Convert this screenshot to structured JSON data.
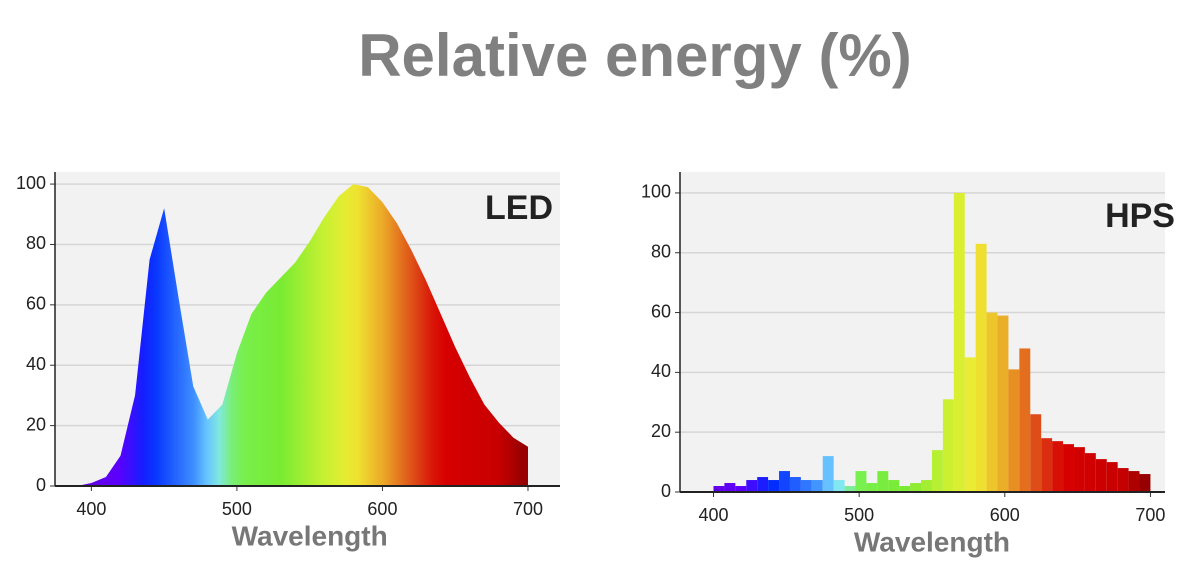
{
  "title": "Relative energy (%)",
  "chart_data": [
    {
      "type": "area",
      "label": "LED",
      "xlabel": "Wavelength",
      "x": [
        390,
        400,
        410,
        420,
        430,
        440,
        450,
        460,
        470,
        480,
        490,
        500,
        510,
        520,
        530,
        540,
        550,
        560,
        570,
        580,
        590,
        600,
        610,
        620,
        630,
        640,
        650,
        660,
        670,
        680,
        690,
        700
      ],
      "values": [
        0,
        1,
        3,
        10,
        30,
        75,
        92,
        62,
        33,
        22,
        27,
        44,
        57,
        64,
        69,
        74,
        81,
        89,
        96,
        100,
        99,
        94,
        87,
        78,
        68,
        57,
        46,
        36,
        27,
        21,
        16,
        13
      ],
      "xlim": [
        375,
        722
      ],
      "ylim": [
        0,
        104
      ],
      "xticks": [
        400,
        500,
        600,
        700
      ],
      "yticks": [
        0,
        20,
        40,
        60,
        80,
        100
      ],
      "grid": true,
      "color": "spectrum"
    },
    {
      "type": "histogram",
      "label": "HPS",
      "xlabel": "Wavelength",
      "bins": [
        400,
        407.5,
        415,
        422.5,
        430,
        437.5,
        445,
        452.5,
        460,
        467.5,
        475,
        482.5,
        490,
        497.5,
        505,
        512.5,
        520,
        527.5,
        535,
        542.5,
        550,
        557.5,
        565,
        572.5,
        580,
        587.5,
        595,
        602.5,
        610,
        617.5,
        625,
        632.5,
        640,
        647.5,
        655,
        662.5,
        670,
        677.5,
        685,
        692.5,
        700
      ],
      "values": [
        2,
        3,
        2,
        4,
        5,
        4,
        7,
        5,
        4,
        4,
        12,
        4,
        2,
        7,
        3,
        7,
        4,
        2,
        3,
        4,
        14,
        31,
        100,
        45,
        83,
        60,
        59,
        41,
        48,
        26,
        18,
        17,
        16,
        15,
        13,
        11,
        10,
        8,
        7,
        6
      ],
      "xlim": [
        377,
        710
      ],
      "ylim": [
        0,
        107
      ],
      "xticks": [
        400,
        500,
        600,
        700
      ],
      "yticks": [
        0,
        20,
        40,
        60,
        80,
        100
      ],
      "grid": true,
      "color": "spectrum"
    }
  ]
}
